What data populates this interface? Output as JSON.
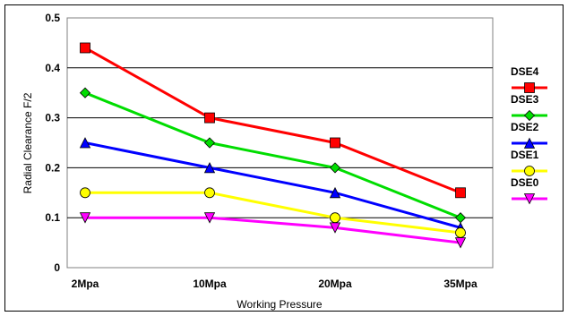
{
  "chart_data": {
    "type": "line",
    "title": "",
    "xlabel": "Working Pressure",
    "ylabel": "Radial Clearance F/2",
    "categories": [
      "2Mpa",
      "10Mpa",
      "20Mpa",
      "35Mpa"
    ],
    "ylim": [
      0,
      0.5
    ],
    "yticks": [
      "0",
      "0.1",
      "0.2",
      "0.3",
      "0.4",
      "0.5"
    ],
    "grid": true,
    "legend_position": "right",
    "series": [
      {
        "name": "DSE4",
        "values": [
          0.44,
          0.3,
          0.25,
          0.15
        ],
        "color": "#ff0000",
        "marker": "square"
      },
      {
        "name": "DSE3",
        "values": [
          0.35,
          0.25,
          0.2,
          0.1
        ],
        "color": "#00dd00",
        "marker": "diamond"
      },
      {
        "name": "DSE2",
        "values": [
          0.25,
          0.2,
          0.15,
          0.08
        ],
        "color": "#0000ff",
        "marker": "triangle-up"
      },
      {
        "name": "DSE1",
        "values": [
          0.15,
          0.15,
          0.1,
          0.07
        ],
        "color": "#ffff00",
        "marker": "circle"
      },
      {
        "name": "DSE0",
        "values": [
          0.1,
          0.1,
          0.08,
          0.05
        ],
        "color": "#ff00ff",
        "marker": "triangle-down"
      }
    ]
  }
}
